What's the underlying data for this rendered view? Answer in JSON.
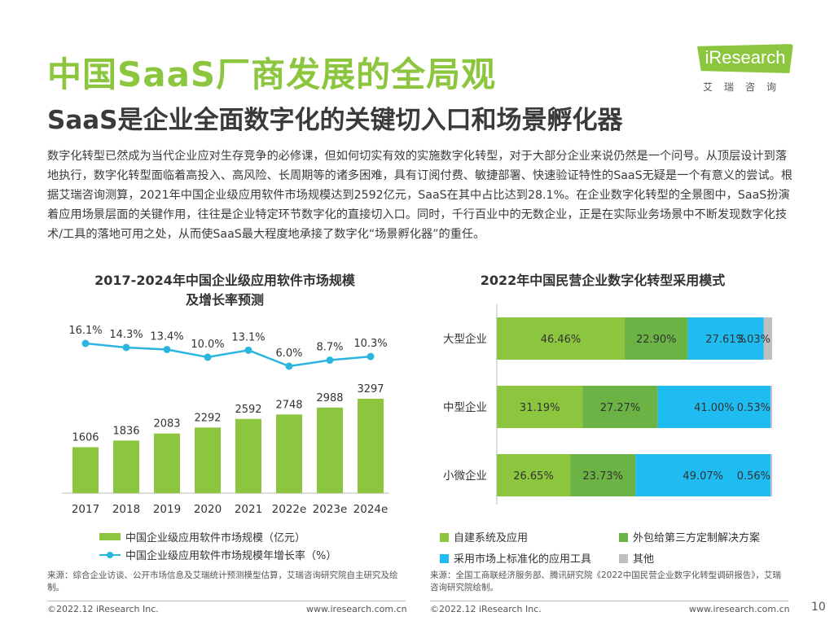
{
  "page": {
    "title": "中国SaaS厂商发展的全局观",
    "subtitle": "SaaS是企业全面数字化的关键切入口和场景孵化器",
    "intro": "数字化转型已然成为当代企业应对生存竞争的必修课，但如何切实有效的实施数字化转型，对于大部分企业来说仍然是一个问号。从顶层设计到落地执行，数字化转型面临着高投入、高风险、长周期等的诸多困难，具有订阅付费、敏捷部署、快速验证特性的SaaS无疑是一个有意义的尝试。根据艾瑞咨询测算，2021年中国企业级应用软件市场规模达到2592亿元，SaaS在其中占比达到28.1%。在企业数字化转型的全景图中，SaaS扮演着应用场景层面的关键作用，往往是企业特定环节数字化的直接切入口。同时，千行百业中的无数企业，正是在实际业务场景中不断发现数字化技术/工具的落地可用之处，从而使SaaS最大程度地承接了数字化“场景孵化器”的重任。",
    "logo_text": "iResearch",
    "logo_cn": "艾瑞咨询",
    "page_number": "10"
  },
  "colors": {
    "accent_green": "#8cc63f",
    "mid_green": "#6ab344",
    "cyan": "#2bb5de",
    "bar_cyan": "#1fbcf2",
    "gray": "#bfbfbf"
  },
  "chart_data": [
    {
      "type": "bar+line",
      "title_line1": "2017-2024年中国企业级应用软件市场规模",
      "title_line2": "及增长率预测",
      "categories": [
        "2017",
        "2018",
        "2019",
        "2020",
        "2021",
        "2022e",
        "2023e",
        "2024e"
      ],
      "series": [
        {
          "name": "中国企业级应用软件市场规模（亿元）",
          "type": "bar",
          "values": [
            1606,
            1836,
            2083,
            2292,
            2592,
            2748,
            2988,
            3297
          ],
          "labels": [
            "1606",
            "1836",
            "2083",
            "2292",
            "2592",
            "2748",
            "2988",
            "3297"
          ]
        },
        {
          "name": "中国企业级应用软件市场规模年增长率（%）",
          "type": "line",
          "values": [
            16.1,
            14.3,
            13.4,
            10.0,
            13.1,
            6.0,
            8.7,
            10.3
          ],
          "labels": [
            "16.1%",
            "14.3%",
            "13.4%",
            "10.0%",
            "13.1%",
            "6.0%",
            "8.7%",
            "10.3%"
          ]
        }
      ],
      "legend_placement": "bottom",
      "source": "来源：综合企业访谈、公开市场信息及艾瑞统计预测模型估算，艾瑞咨询研究院自主研究及绘制。",
      "footer_left": "©2022.12 iResearch Inc.",
      "footer_right": "www.iresearch.com.cn"
    },
    {
      "type": "stacked-bar-horizontal",
      "title": "2022年中国民营企业数字化转型采用模式",
      "categories": [
        "大型企业",
        "中型企业",
        "小微企业"
      ],
      "series": [
        {
          "name": "自建系统及应用",
          "values": [
            46.46,
            31.19,
            26.65
          ],
          "labels": [
            "46.46%",
            "31.19%",
            "26.65%"
          ]
        },
        {
          "name": "外包给第三方定制解决方案",
          "values": [
            22.9,
            27.27,
            23.73
          ],
          "labels": [
            "22.90%",
            "27.27%",
            "23.73%"
          ]
        },
        {
          "name": "采用市场上标准化的应用工具",
          "values": [
            27.61,
            41.0,
            49.07
          ],
          "labels": [
            "27.61%",
            "41.00%",
            "49.07%"
          ]
        },
        {
          "name": "其他",
          "values": [
            3.03,
            0.53,
            0.56
          ],
          "labels": [
            "3.03%",
            "0.53%",
            "0.56%"
          ]
        }
      ],
      "xlim": [
        0,
        100
      ],
      "legend_placement": "bottom",
      "source": "来源：全国工商联经济服务部、腾讯研究院《2022中国民营企业数字化转型调研报告》，艾瑞咨询研究院绘制。",
      "footer_left": "©2022.12 iResearch Inc.",
      "footer_right": "www.iresearch.com.cn"
    }
  ]
}
